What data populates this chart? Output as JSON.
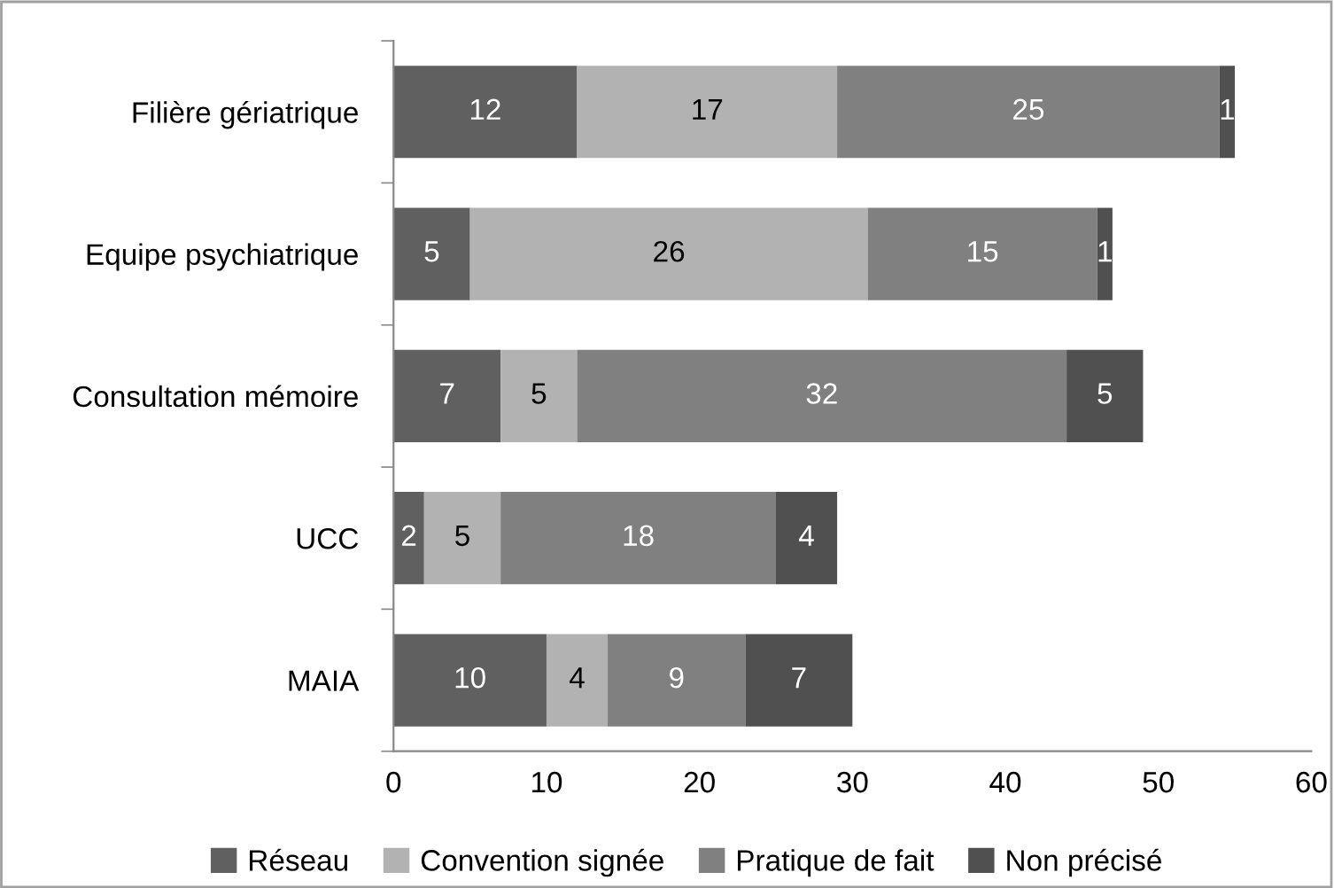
{
  "chart_data": {
    "type": "bar",
    "orientation": "horizontal",
    "stacked": true,
    "data_labels": true,
    "legend": "bottom",
    "grid": false,
    "categories": [
      "Filière gériatrique",
      "Equipe psychiatrique",
      "Consultation mémoire",
      "UCC",
      "MAIA"
    ],
    "series": [
      {
        "name": "Réseau",
        "color": "#606060",
        "values": [
          12,
          5,
          7,
          2,
          10
        ]
      },
      {
        "name": "Convention signée",
        "color": "#b2b2b2",
        "values": [
          17,
          26,
          5,
          5,
          4
        ]
      },
      {
        "name": "Pratique de fait",
        "color": "#808080",
        "values": [
          25,
          15,
          32,
          18,
          9
        ]
      },
      {
        "name": "Non précisé",
        "color": "#505050",
        "values": [
          1,
          1,
          5,
          4,
          7
        ]
      }
    ],
    "xlim": [
      0,
      60
    ],
    "xticks": [
      0,
      10,
      20,
      30,
      40,
      50,
      60
    ]
  }
}
